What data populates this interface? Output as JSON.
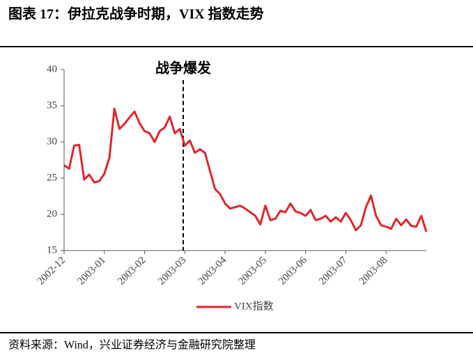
{
  "title": "图表 17：伊拉克战争时期，VIX 指数走势",
  "source": "资料来源：Wind，兴业证券经济与金融研究院整理",
  "chart_data": {
    "type": "line",
    "annotation": "战争爆发",
    "categories": [
      "2002-12",
      null,
      null,
      null,
      null,
      null,
      null,
      null,
      "2003-01",
      null,
      null,
      null,
      null,
      null,
      null,
      null,
      "2003-02",
      null,
      null,
      null,
      null,
      null,
      null,
      null,
      "2003-03",
      null,
      null,
      null,
      null,
      null,
      null,
      null,
      "2003-04",
      null,
      null,
      null,
      null,
      null,
      null,
      null,
      "2003-05",
      null,
      null,
      null,
      null,
      null,
      null,
      null,
      "2003-06",
      null,
      null,
      null,
      null,
      null,
      null,
      null,
      "2003-07",
      null,
      null,
      null,
      null,
      null,
      null,
      null,
      "2003-08",
      null,
      null,
      null,
      null,
      null,
      null,
      null,
      null
    ],
    "series": [
      {
        "name": "VIX指数",
        "color": "#e0252b",
        "values": [
          26.8,
          26.3,
          29.5,
          29.6,
          24.8,
          25.5,
          24.4,
          24.6,
          25.6,
          27.8,
          34.6,
          31.8,
          32.5,
          33.4,
          34.2,
          32.6,
          31.5,
          31.2,
          30.0,
          31.5,
          32.0,
          33.5,
          31.2,
          31.8,
          29.5,
          30.2,
          28.5,
          29.0,
          28.5,
          26.0,
          23.5,
          22.8,
          21.5,
          20.8,
          21.0,
          21.2,
          20.8,
          20.3,
          19.8,
          18.6,
          21.2,
          19.2,
          19.4,
          20.5,
          20.3,
          21.5,
          20.4,
          20.2,
          19.8,
          20.6,
          19.2,
          19.4,
          19.8,
          19.0,
          19.6,
          19.0,
          20.2,
          19.2,
          17.8,
          18.5,
          21.0,
          22.6,
          19.8,
          18.5,
          18.3,
          18.0,
          19.4,
          18.5,
          19.3,
          18.4,
          18.3,
          19.8,
          17.6
        ]
      }
    ],
    "ylim": [
      15,
      40
    ],
    "yticks": [
      15,
      20,
      25,
      30,
      35,
      40
    ],
    "legend": "bottom"
  }
}
